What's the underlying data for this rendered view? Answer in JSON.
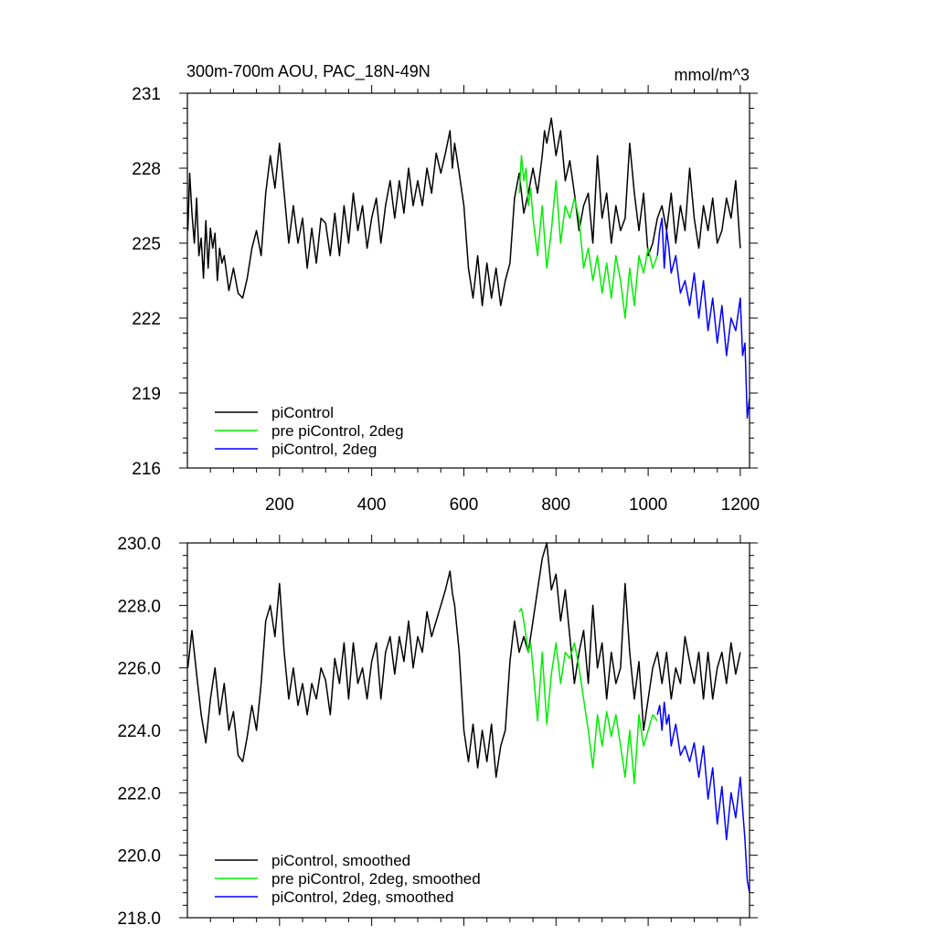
{
  "chart_data": [
    {
      "type": "line",
      "title": "300m-700m AOU, PAC_18N-49N",
      "units": "mmol/m^3",
      "xlim": [
        0,
        1220
      ],
      "ylim": [
        216,
        231
      ],
      "x_ticks": [
        200,
        400,
        600,
        800,
        1000,
        1200
      ],
      "x_tick_labels": [
        "200",
        "400",
        "600",
        "800",
        "1000",
        "1200"
      ],
      "y_ticks": [
        216,
        219,
        222,
        225,
        228,
        231
      ],
      "y_tick_labels": [
        "216",
        "219",
        "222",
        "225",
        "228",
        "231"
      ],
      "legend_position": "bottom-left",
      "series": [
        {
          "name": "piControl",
          "color": "#000000",
          "x": [
            1,
            5,
            10,
            15,
            20,
            25,
            30,
            35,
            40,
            45,
            50,
            55,
            60,
            65,
            70,
            75,
            80,
            90,
            100,
            110,
            120,
            130,
            140,
            150,
            160,
            170,
            180,
            190,
            200,
            210,
            220,
            230,
            240,
            250,
            260,
            270,
            280,
            290,
            300,
            310,
            320,
            330,
            340,
            350,
            360,
            370,
            380,
            390,
            400,
            410,
            420,
            430,
            440,
            450,
            460,
            470,
            480,
            490,
            500,
            510,
            520,
            530,
            540,
            550,
            560,
            570,
            575,
            580,
            590,
            600,
            610,
            620,
            630,
            640,
            650,
            660,
            670,
            680,
            690,
            700,
            710,
            720,
            730,
            740,
            750,
            760,
            770,
            775,
            780,
            790,
            800,
            810,
            820,
            830,
            840,
            850,
            860,
            870,
            880,
            890,
            900,
            910,
            920,
            930,
            940,
            950,
            960,
            970,
            980,
            990,
            1000,
            1010,
            1020,
            1030,
            1040,
            1050,
            1060,
            1070,
            1080,
            1090,
            1100,
            1110,
            1120,
            1130,
            1140,
            1150,
            1160,
            1170,
            1180,
            1190,
            1200
          ],
          "y": [
            225.5,
            227.8,
            226.2,
            225.0,
            226.8,
            224.5,
            225.2,
            223.6,
            225.9,
            224.0,
            225.6,
            224.8,
            225.4,
            223.5,
            224.8,
            224.2,
            224.5,
            223.1,
            224.0,
            223.0,
            222.8,
            223.6,
            224.8,
            225.5,
            224.5,
            227.0,
            228.5,
            227.2,
            229.0,
            227.0,
            225.0,
            226.5,
            225.0,
            226.0,
            224.0,
            225.6,
            224.2,
            226.0,
            225.8,
            224.5,
            226.2,
            224.5,
            226.5,
            225.0,
            227.0,
            225.5,
            226.5,
            224.8,
            226.0,
            226.8,
            225.0,
            226.5,
            227.5,
            226.0,
            227.5,
            226.2,
            228.0,
            226.5,
            227.5,
            226.5,
            228.0,
            227.0,
            228.6,
            227.8,
            228.6,
            229.5,
            228.0,
            229.0,
            227.8,
            226.5,
            224.0,
            222.8,
            224.5,
            222.5,
            224.2,
            222.8,
            224.0,
            222.5,
            223.5,
            224.2,
            226.8,
            227.8,
            226.2,
            227.0,
            228.0,
            227.0,
            228.5,
            229.5,
            229.0,
            230.0,
            228.5,
            229.5,
            227.5,
            228.3,
            227.0,
            225.5,
            226.5,
            227.0,
            225.0,
            228.5,
            226.0,
            227.0,
            225.0,
            226.5,
            225.5,
            226.0,
            229.0,
            227.0,
            225.5,
            227.0,
            224.5,
            225.0,
            226.0,
            226.5,
            225.5,
            227.0,
            225.0,
            226.5,
            225.5,
            228.0,
            226.0,
            224.8,
            226.5,
            225.5,
            226.8,
            225.0,
            225.5,
            226.8,
            226.0,
            227.5,
            224.8
          ]
        },
        {
          "name": "pre piControl, 2deg",
          "color": "#00ee00",
          "x": [
            720,
            725,
            730,
            735,
            740,
            745,
            750,
            760,
            770,
            780,
            790,
            800,
            810,
            820,
            830,
            840,
            850,
            860,
            870,
            880,
            890,
            900,
            910,
            920,
            930,
            940,
            950,
            960,
            970,
            980,
            990,
            1000,
            1010,
            1020
          ],
          "y": [
            227.0,
            228.5,
            227.5,
            228.0,
            226.5,
            227.2,
            226.0,
            224.5,
            226.5,
            224.0,
            225.5,
            227.5,
            225.0,
            226.5,
            226.0,
            226.8,
            226.0,
            224.0,
            224.8,
            223.5,
            224.5,
            223.0,
            224.2,
            222.8,
            224.5,
            223.5,
            222.0,
            224.0,
            222.5,
            224.5,
            223.8,
            224.8,
            224.0,
            224.5
          ]
        },
        {
          "name": "piControl, 2deg",
          "color": "#0000ff",
          "x": [
            1020,
            1025,
            1030,
            1035,
            1040,
            1045,
            1050,
            1060,
            1070,
            1080,
            1090,
            1100,
            1110,
            1120,
            1130,
            1140,
            1150,
            1160,
            1170,
            1180,
            1190,
            1200,
            1205,
            1210,
            1215,
            1220
          ],
          "y": [
            224.5,
            225.5,
            226.0,
            224.0,
            225.5,
            224.8,
            223.8,
            224.5,
            223.0,
            223.5,
            222.5,
            223.8,
            222.0,
            223.5,
            221.5,
            222.8,
            221.0,
            222.5,
            220.5,
            222.0,
            221.5,
            222.8,
            220.5,
            221.0,
            218.0,
            218.8
          ]
        }
      ]
    },
    {
      "type": "line",
      "xlim": [
        0,
        1220
      ],
      "ylim": [
        218,
        230
      ],
      "x_ticks": [
        200,
        400,
        600,
        800,
        1000,
        1200
      ],
      "y_ticks": [
        218,
        220,
        222,
        224,
        226,
        228,
        230
      ],
      "y_tick_labels": [
        "218.0",
        "220.0",
        "222.0",
        "224.0",
        "226.0",
        "228.0",
        "230.0"
      ],
      "legend_position": "bottom-left",
      "series": [
        {
          "name": "piControl, smoothed",
          "color": "#000000",
          "x": [
            1,
            10,
            20,
            30,
            40,
            50,
            60,
            70,
            80,
            90,
            100,
            110,
            120,
            130,
            140,
            150,
            160,
            170,
            180,
            190,
            200,
            210,
            220,
            230,
            240,
            250,
            260,
            270,
            280,
            290,
            300,
            310,
            320,
            330,
            340,
            350,
            360,
            370,
            380,
            390,
            400,
            410,
            420,
            430,
            440,
            450,
            460,
            470,
            480,
            490,
            500,
            510,
            520,
            530,
            540,
            550,
            560,
            570,
            575,
            580,
            590,
            600,
            610,
            620,
            630,
            640,
            650,
            660,
            670,
            680,
            690,
            700,
            710,
            720,
            730,
            740,
            750,
            760,
            770,
            780,
            790,
            800,
            810,
            820,
            830,
            840,
            850,
            860,
            870,
            880,
            890,
            900,
            910,
            920,
            930,
            940,
            950,
            960,
            970,
            980,
            990,
            1000,
            1010,
            1020,
            1030,
            1040,
            1050,
            1060,
            1070,
            1080,
            1090,
            1100,
            1110,
            1120,
            1130,
            1140,
            1150,
            1160,
            1170,
            1180,
            1190,
            1200
          ],
          "y": [
            226.0,
            227.2,
            225.8,
            224.5,
            223.6,
            225.0,
            226.0,
            224.5,
            225.5,
            224.0,
            224.6,
            223.2,
            223.0,
            223.8,
            224.8,
            224.0,
            225.5,
            227.5,
            228.0,
            227.0,
            228.7,
            226.5,
            225.0,
            226.0,
            224.8,
            225.5,
            224.5,
            225.5,
            225.0,
            226.0,
            225.6,
            224.5,
            226.3,
            225.5,
            226.8,
            225.0,
            226.8,
            225.5,
            226.0,
            225.0,
            226.2,
            226.8,
            225.0,
            226.5,
            227.0,
            225.8,
            227.0,
            226.2,
            227.5,
            226.0,
            227.0,
            226.5,
            227.8,
            227.0,
            227.5,
            228.0,
            228.5,
            229.1,
            228.4,
            228.0,
            226.5,
            224.0,
            223.0,
            224.2,
            222.8,
            224.0,
            223.0,
            224.2,
            222.5,
            223.5,
            224.0,
            226.2,
            227.5,
            226.5,
            227.0,
            226.5,
            227.5,
            228.5,
            229.5,
            230.0,
            228.5,
            229.0,
            227.5,
            228.5,
            227.0,
            225.5,
            226.5,
            227.2,
            225.5,
            228.0,
            226.0,
            226.8,
            225.0,
            226.5,
            225.5,
            226.0,
            228.7,
            226.5,
            225.0,
            226.2,
            224.0,
            225.0,
            226.0,
            226.5,
            225.5,
            226.5,
            225.0,
            226.0,
            225.5,
            227.0,
            226.2,
            225.5,
            226.5,
            225.0,
            226.5,
            225.0,
            226.0,
            226.5,
            225.5,
            226.8,
            225.8,
            226.5
          ]
        },
        {
          "name": "pre piControl, 2deg, smoothed",
          "color": "#00ee00",
          "x": [
            720,
            725,
            730,
            735,
            740,
            745,
            750,
            760,
            770,
            780,
            790,
            800,
            810,
            820,
            830,
            840,
            850,
            860,
            870,
            880,
            890,
            900,
            910,
            920,
            930,
            940,
            950,
            960,
            970,
            980,
            990,
            1000,
            1010,
            1020
          ],
          "y": [
            227.8,
            227.9,
            227.5,
            227.0,
            226.5,
            226.8,
            226.0,
            224.3,
            226.5,
            224.2,
            225.8,
            226.8,
            225.5,
            226.5,
            226.3,
            226.8,
            226.0,
            225.0,
            224.0,
            222.8,
            224.5,
            223.5,
            224.6,
            223.8,
            224.5,
            223.5,
            222.5,
            224.0,
            222.3,
            224.5,
            223.5,
            224.0,
            224.5,
            224.3
          ]
        },
        {
          "name": "piControl, 2deg, smoothed",
          "color": "#0000ff",
          "x": [
            1020,
            1025,
            1030,
            1035,
            1040,
            1045,
            1050,
            1060,
            1070,
            1080,
            1090,
            1100,
            1110,
            1120,
            1130,
            1140,
            1150,
            1160,
            1170,
            1180,
            1190,
            1200,
            1205,
            1210,
            1215,
            1220
          ],
          "y": [
            224.5,
            224.8,
            224.0,
            224.9,
            224.2,
            224.5,
            223.5,
            224.2,
            223.2,
            223.5,
            223.0,
            223.6,
            222.5,
            223.5,
            221.8,
            222.8,
            221.0,
            222.2,
            220.5,
            222.0,
            221.2,
            222.5,
            221.5,
            220.5,
            219.2,
            218.8
          ]
        }
      ]
    }
  ]
}
